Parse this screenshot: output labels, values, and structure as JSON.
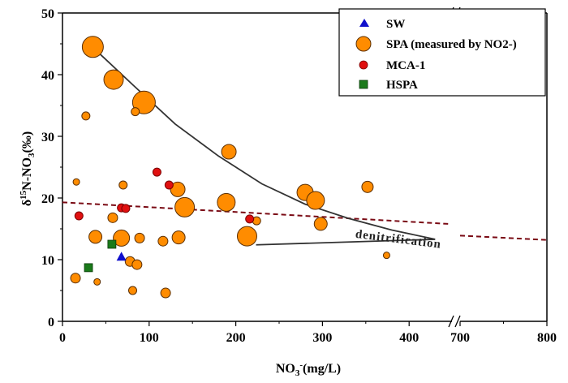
{
  "chart_data": {
    "type": "scatter",
    "title": "",
    "xlabel": "NO3-(mg/L)",
    "ylabel": "δ15N-NO3(‰)",
    "x_axis": {
      "segments": [
        [
          0,
          450
        ],
        [
          700,
          800
        ]
      ],
      "break_between": [
        450,
        700
      ],
      "ticks": [
        0,
        100,
        200,
        300,
        400,
        700,
        800
      ],
      "tick_labels": [
        "0",
        "100",
        "200",
        "300",
        "400",
        "700",
        "800"
      ]
    },
    "y_axis": {
      "range": [
        0,
        50
      ],
      "ticks": [
        0,
        10,
        20,
        30,
        40,
        50
      ],
      "tick_labels": [
        "0",
        "10",
        "20",
        "30",
        "40",
        "50"
      ]
    },
    "grid": false,
    "legend": {
      "position": "top-right",
      "entries": [
        {
          "name": "SW",
          "label": "SW",
          "marker": "triangle",
          "color": "#1010cc"
        },
        {
          "name": "SPA",
          "label": "SPA (measured by NO2-)",
          "marker": "circle",
          "color": "#ff8c00"
        },
        {
          "name": "MCA-1",
          "label": "MCA-1",
          "marker": "circle",
          "color": "#e01010"
        },
        {
          "name": "HSPA",
          "label": "HSPA",
          "marker": "square",
          "color": "#1a7a1a"
        }
      ]
    },
    "series": [
      {
        "name": "SW",
        "marker": "triangle",
        "color": "#1010cc",
        "points": [
          {
            "x": 68,
            "y": 10.5
          }
        ]
      },
      {
        "name": "SPA",
        "marker": "circle",
        "color": "#ff8c00",
        "size_encoded": true,
        "points": [
          {
            "x": 35,
            "y": 44.5,
            "size": 13
          },
          {
            "x": 59,
            "y": 39.2,
            "size": 12
          },
          {
            "x": 94,
            "y": 35.5,
            "size": 14
          },
          {
            "x": 27,
            "y": 33.3,
            "size": 5
          },
          {
            "x": 84,
            "y": 34.0,
            "size": 5
          },
          {
            "x": 192,
            "y": 27.5,
            "size": 9
          },
          {
            "x": 16,
            "y": 22.6,
            "size": 4
          },
          {
            "x": 70,
            "y": 22.1,
            "size": 5
          },
          {
            "x": 133,
            "y": 21.4,
            "size": 9
          },
          {
            "x": 141,
            "y": 18.5,
            "size": 12
          },
          {
            "x": 189,
            "y": 19.3,
            "size": 11
          },
          {
            "x": 280,
            "y": 20.9,
            "size": 10
          },
          {
            "x": 292,
            "y": 19.6,
            "size": 11
          },
          {
            "x": 352,
            "y": 21.8,
            "size": 7
          },
          {
            "x": 58,
            "y": 16.8,
            "size": 6
          },
          {
            "x": 224,
            "y": 16.3,
            "size": 5
          },
          {
            "x": 298,
            "y": 15.8,
            "size": 8
          },
          {
            "x": 38,
            "y": 13.7,
            "size": 8
          },
          {
            "x": 68,
            "y": 13.5,
            "size": 10
          },
          {
            "x": 89,
            "y": 13.5,
            "size": 6
          },
          {
            "x": 116,
            "y": 13.0,
            "size": 6
          },
          {
            "x": 134,
            "y": 13.6,
            "size": 8
          },
          {
            "x": 213,
            "y": 13.8,
            "size": 12
          },
          {
            "x": 374,
            "y": 10.7,
            "size": 4
          },
          {
            "x": 78,
            "y": 9.7,
            "size": 6
          },
          {
            "x": 86,
            "y": 9.2,
            "size": 6
          },
          {
            "x": 15,
            "y": 7.0,
            "size": 6
          },
          {
            "x": 40,
            "y": 6.4,
            "size": 4
          },
          {
            "x": 81,
            "y": 5.0,
            "size": 5
          },
          {
            "x": 119,
            "y": 4.6,
            "size": 6
          }
        ]
      },
      {
        "name": "MCA-1",
        "marker": "circle",
        "color": "#e01010",
        "points": [
          {
            "x": 109,
            "y": 24.2
          },
          {
            "x": 123,
            "y": 22.1
          },
          {
            "x": 68,
            "y": 18.4
          },
          {
            "x": 73,
            "y": 18.3
          },
          {
            "x": 19,
            "y": 17.1
          },
          {
            "x": 216,
            "y": 16.6
          }
        ]
      },
      {
        "name": "HSPA",
        "marker": "square",
        "color": "#1a7a1a",
        "points": [
          {
            "x": 57,
            "y": 12.5
          },
          {
            "x": 30,
            "y": 8.7
          }
        ]
      }
    ],
    "trend_lines": [
      {
        "name": "regression-dashed",
        "style": "dashed",
        "color": "#7a0a14",
        "points": [
          {
            "x": 0,
            "y": 19.3
          },
          {
            "x": 445,
            "y": 15.8
          },
          {
            "x": 700,
            "y": 13.9
          },
          {
            "x": 800,
            "y": 13.2
          }
        ]
      },
      {
        "name": "denitrification-curve",
        "style": "solid-arrow",
        "color": "#333333",
        "points": [
          {
            "x": 36,
            "y": 44.3
          },
          {
            "x": 80,
            "y": 38.5
          },
          {
            "x": 130,
            "y": 32.0
          },
          {
            "x": 180,
            "y": 26.8
          },
          {
            "x": 230,
            "y": 22.3
          },
          {
            "x": 280,
            "y": 19.0
          },
          {
            "x": 330,
            "y": 16.7
          },
          {
            "x": 380,
            "y": 14.8
          },
          {
            "x": 430,
            "y": 13.3
          },
          {
            "x": 465,
            "y": 12.4
          }
        ]
      }
    ],
    "annotations": [
      {
        "text": "denitrification",
        "x": 330,
        "y": 14.5
      }
    ]
  }
}
